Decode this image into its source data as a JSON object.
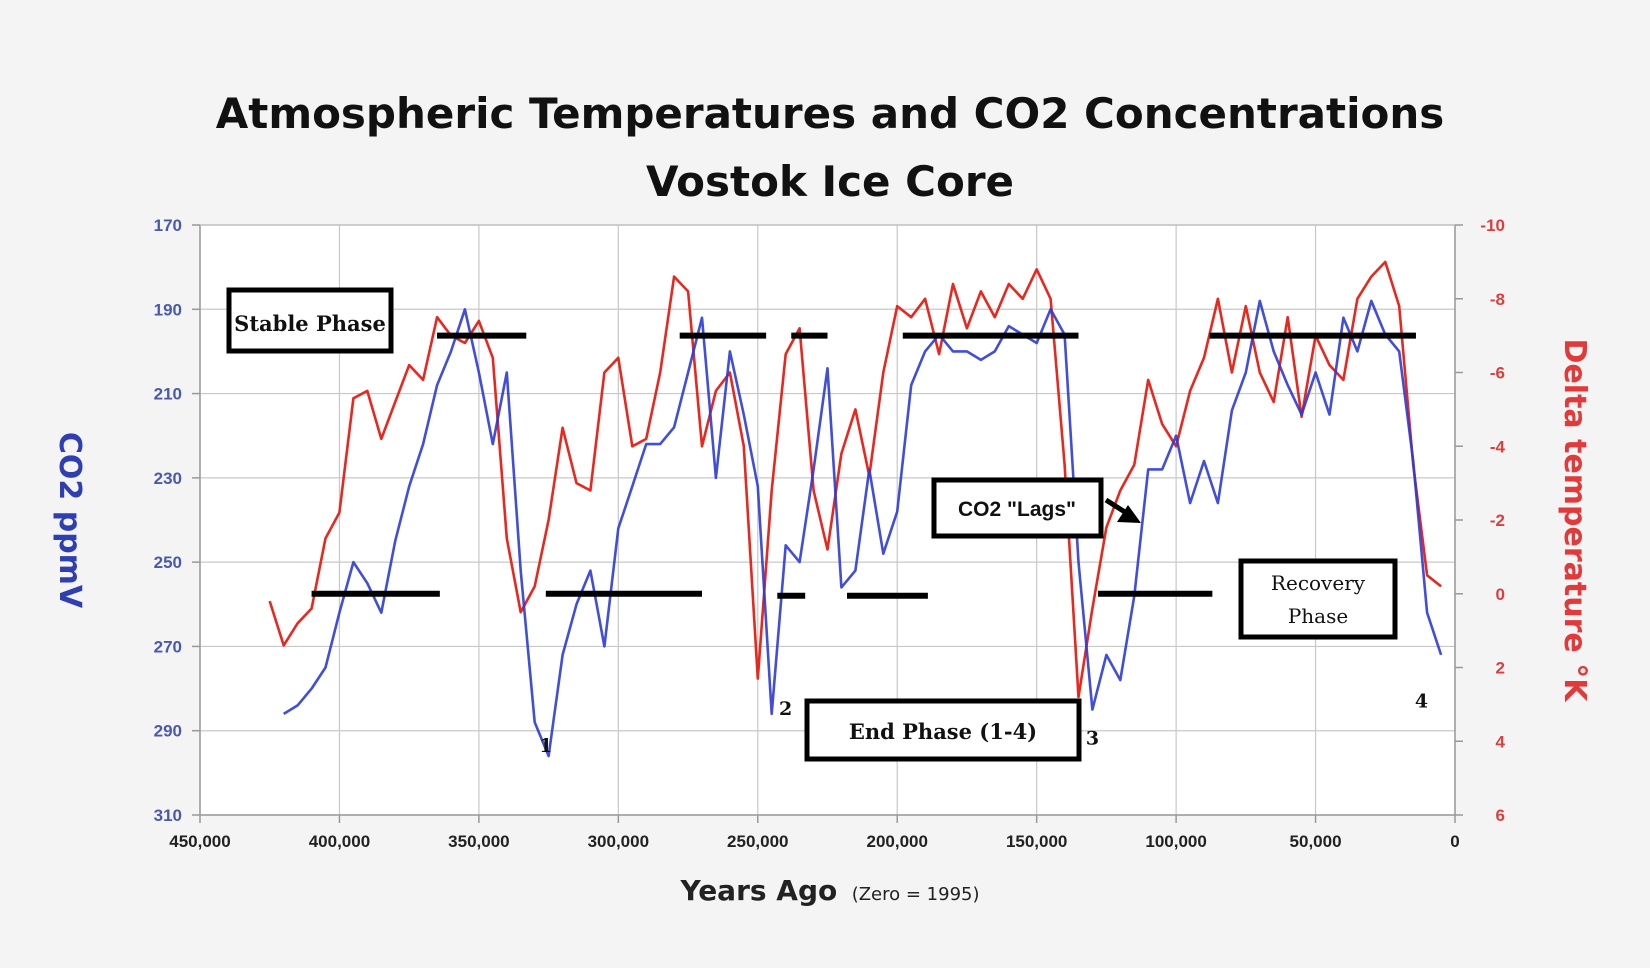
{
  "chart_data": {
    "type": "line",
    "title": "Atmospheric Temperatures and CO2 Concentrations",
    "subtitle": "Vostok Ice Core",
    "xlabel": "Years Ago",
    "xlabel_note": "(Zero = 1995)",
    "ylabel_left": "CO2 ppmV",
    "ylabel_right": "Delta temperature °K",
    "x_reversed": true,
    "xlim": [
      450000,
      0
    ],
    "ylim_left": [
      170,
      310
    ],
    "ylim_left_inverted": true,
    "ylim_right": [
      -10,
      6
    ],
    "grid": true,
    "x_ticks": [
      "450,000",
      "400,000",
      "350,000",
      "300,000",
      "250,000",
      "200,000",
      "150,000",
      "100,000",
      "50,000",
      "0"
    ],
    "y_left_ticks": [
      "170",
      "190",
      "210",
      "230",
      "250",
      "270",
      "290",
      "310"
    ],
    "y_right_ticks": [
      "-10",
      "-8",
      "-6",
      "-4",
      "-2",
      "0",
      "2",
      "4",
      "6"
    ],
    "colors": {
      "co2": "#2b3bd6",
      "temp": "#e8281e",
      "annotation": "#000000"
    },
    "series": [
      {
        "name": "CO2",
        "axis": "left",
        "x": [
          420000,
          415000,
          410000,
          405000,
          400000,
          395000,
          390000,
          385000,
          380000,
          375000,
          370000,
          365000,
          360000,
          355000,
          350000,
          345000,
          340000,
          335000,
          330000,
          325000,
          320000,
          315000,
          310000,
          305000,
          300000,
          295000,
          290000,
          285000,
          280000,
          275000,
          270000,
          265000,
          260000,
          255000,
          250000,
          245000,
          240000,
          235000,
          230000,
          225000,
          220000,
          215000,
          210000,
          205000,
          200000,
          195000,
          190000,
          185000,
          180000,
          175000,
          170000,
          165000,
          160000,
          155000,
          150000,
          145000,
          140000,
          135000,
          130000,
          125000,
          120000,
          115000,
          110000,
          105000,
          100000,
          95000,
          90000,
          85000,
          80000,
          75000,
          70000,
          65000,
          60000,
          55000,
          50000,
          45000,
          40000,
          35000,
          30000,
          25000,
          20000,
          15000,
          10000,
          5000
        ],
        "y": [
          286,
          284,
          280,
          275,
          262,
          250,
          255,
          262,
          245,
          232,
          222,
          208,
          200,
          190,
          205,
          222,
          205,
          252,
          288,
          296,
          272,
          260,
          252,
          270,
          242,
          232,
          222,
          222,
          218,
          205,
          192,
          230,
          200,
          215,
          232,
          286,
          246,
          250,
          228,
          204,
          256,
          252,
          228,
          248,
          238,
          208,
          200,
          196,
          200,
          200,
          202,
          200,
          194,
          196,
          198,
          190,
          196,
          250,
          285,
          272,
          278,
          258,
          228,
          228,
          220,
          236,
          226,
          236,
          214,
          205,
          188,
          200,
          208,
          215,
          205,
          215,
          192,
          200,
          188,
          196,
          200,
          226,
          262,
          272
        ]
      },
      {
        "name": "Delta temperature",
        "axis": "right",
        "x": [
          425000,
          420000,
          415000,
          410000,
          405000,
          400000,
          395000,
          390000,
          385000,
          380000,
          375000,
          370000,
          365000,
          360000,
          355000,
          350000,
          345000,
          340000,
          335000,
          330000,
          325000,
          320000,
          315000,
          310000,
          305000,
          300000,
          295000,
          290000,
          285000,
          280000,
          275000,
          270000,
          265000,
          260000,
          255000,
          250000,
          245000,
          240000,
          235000,
          230000,
          225000,
          220000,
          215000,
          210000,
          205000,
          200000,
          195000,
          190000,
          185000,
          180000,
          175000,
          170000,
          165000,
          160000,
          155000,
          150000,
          145000,
          140000,
          135000,
          130000,
          125000,
          120000,
          115000,
          110000,
          105000,
          100000,
          95000,
          90000,
          85000,
          80000,
          75000,
          70000,
          65000,
          60000,
          55000,
          50000,
          45000,
          40000,
          35000,
          30000,
          25000,
          20000,
          15000,
          10000,
          5000
        ],
        "y": [
          0.2,
          1.4,
          0.8,
          0.4,
          -1.5,
          -2.2,
          -5.3,
          -5.5,
          -4.2,
          -5.2,
          -6.2,
          -5.8,
          -7.5,
          -7.0,
          -6.8,
          -7.4,
          -6.4,
          -1.5,
          0.5,
          -0.2,
          -2.0,
          -4.5,
          -3.0,
          -2.8,
          -6.0,
          -6.4,
          -4.0,
          -4.2,
          -6.0,
          -8.6,
          -8.2,
          -4.0,
          -5.5,
          -6.0,
          -4.0,
          2.3,
          -2.8,
          -6.5,
          -7.2,
          -2.8,
          -1.2,
          -3.8,
          -5.0,
          -3.2,
          -6.0,
          -7.8,
          -7.5,
          -8.0,
          -6.5,
          -8.4,
          -7.2,
          -8.2,
          -7.5,
          -8.4,
          -8.0,
          -8.8,
          -8.0,
          -3.5,
          2.8,
          0.4,
          -1.8,
          -2.8,
          -3.5,
          -5.8,
          -4.6,
          -4.0,
          -5.5,
          -6.4,
          -8.0,
          -6.0,
          -7.8,
          -6.0,
          -5.2,
          -7.5,
          -4.8,
          -7.0,
          -6.2,
          -5.8,
          -8.0,
          -8.6,
          -9.0,
          -7.8,
          -3.5,
          -0.5,
          -0.2
        ]
      }
    ],
    "annotations": {
      "stable_phase": "Stable Phase",
      "co2_lags": "CO2 \"Lags\"",
      "recovery_phase_1": "Recovery",
      "recovery_phase_2": "Phase",
      "end_phase": "End Phase (1-4)",
      "markers": [
        "1",
        "2",
        "3",
        "4"
      ],
      "stable_bars": [
        [
          365000,
          333000
        ],
        [
          278000,
          247000
        ],
        [
          238000,
          225000
        ],
        [
          198000,
          135000
        ],
        [
          88000,
          14000
        ]
      ],
      "recovery_bars": [
        [
          410000,
          364000
        ],
        [
          326000,
          270000
        ],
        [
          243000,
          233000
        ],
        [
          218000,
          189000
        ],
        [
          128000,
          87000
        ]
      ],
      "marker_x": [
        326000,
        240000,
        130000,
        12000
      ],
      "marker_temp": [
        3.8,
        2.8,
        3.6,
        2.6
      ]
    }
  }
}
